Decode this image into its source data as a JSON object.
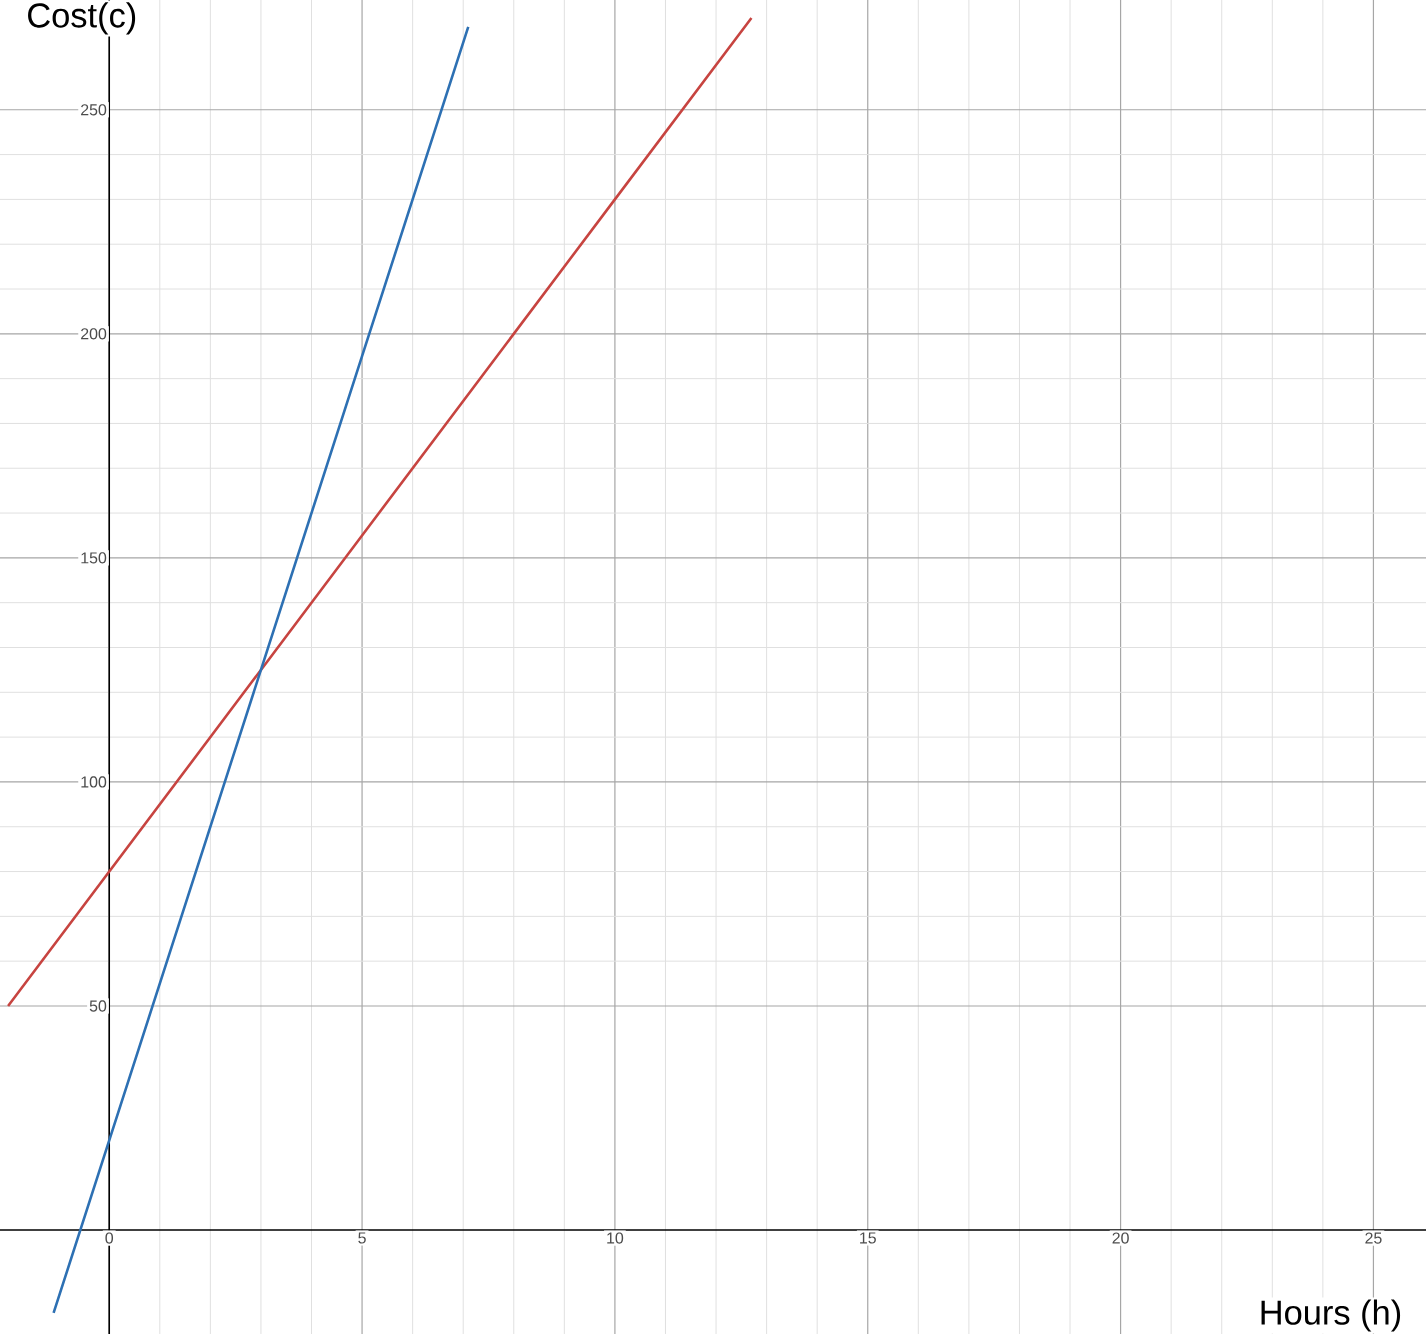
{
  "chart_data": {
    "type": "line",
    "xlabel": "Hours (h)",
    "ylabel": "Cost(c)",
    "xlim": [
      -2.16,
      26.04
    ],
    "ylim": [
      -23.2,
      274.5
    ],
    "xticks": [
      0,
      5,
      10,
      15,
      20,
      25
    ],
    "yticks": [
      50,
      100,
      150,
      200,
      250
    ],
    "grid": true,
    "marker": "none",
    "line_style": "solid",
    "series": [
      {
        "color": "#c74440",
        "x": [
          -2,
          3,
          5,
          10,
          12.7
        ],
        "values": [
          50,
          125,
          155,
          230,
          270.5
        ]
      },
      {
        "color": "#2d70b3",
        "x": [
          -1.1,
          0,
          3,
          5,
          7.1
        ],
        "values": [
          -18.5,
          20,
          125,
          195,
          268.5
        ]
      }
    ]
  }
}
